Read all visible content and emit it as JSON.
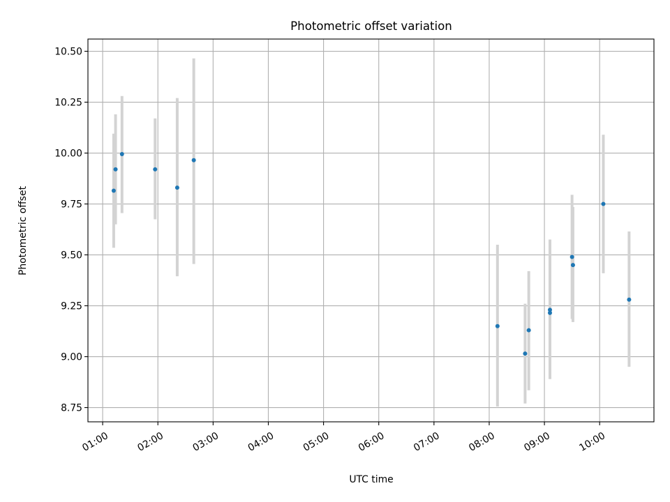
{
  "chart_data": {
    "type": "scatter",
    "title": "Photometric offset variation",
    "xlabel": "UTC time",
    "ylabel": "Photometric offset",
    "x_unit": "UTC clock time (HH:MM)",
    "xlim": [
      "00:44",
      "10:59"
    ],
    "ylim": [
      8.68,
      10.56
    ],
    "xticks": [
      "01:00",
      "02:00",
      "03:00",
      "04:00",
      "05:00",
      "06:00",
      "07:00",
      "08:00",
      "09:00",
      "10:00"
    ],
    "yticks": [
      "8.75",
      "9.00",
      "9.25",
      "9.50",
      "9.75",
      "10.00",
      "10.25",
      "10.50"
    ],
    "grid": true,
    "colors": {
      "points": "#1f77b4",
      "error_bars": "#d3d3d3",
      "grid": "#b0b0b0"
    },
    "points": [
      {
        "x": "01:12",
        "y": 9.815,
        "err_low": 9.535,
        "err_high": 10.095
      },
      {
        "x": "01:14",
        "y": 9.92,
        "err_low": 9.65,
        "err_high": 10.19
      },
      {
        "x": "01:21",
        "y": 9.995,
        "err_low": 9.705,
        "err_high": 10.28
      },
      {
        "x": "01:57",
        "y": 9.92,
        "err_low": 9.675,
        "err_high": 10.17
      },
      {
        "x": "02:21",
        "y": 9.83,
        "err_low": 9.395,
        "err_high": 10.27
      },
      {
        "x": "02:39",
        "y": 9.965,
        "err_low": 9.455,
        "err_high": 10.465
      },
      {
        "x": "08:09",
        "y": 9.15,
        "err_low": 8.755,
        "err_high": 9.55
      },
      {
        "x": "08:39",
        "y": 9.015,
        "err_low": 8.77,
        "err_high": 9.26
      },
      {
        "x": "08:43",
        "y": 9.13,
        "err_low": 8.835,
        "err_high": 9.42
      },
      {
        "x": "09:06",
        "y": 9.23,
        "err_low": 8.89,
        "err_high": 9.575
      },
      {
        "x": "09:06",
        "y": 9.215,
        "err_low": 8.89,
        "err_high": 9.575
      },
      {
        "x": "09:30",
        "y": 9.49,
        "err_low": 9.185,
        "err_high": 9.795
      },
      {
        "x": "09:31",
        "y": 9.45,
        "err_low": 9.17,
        "err_high": 9.735
      },
      {
        "x": "10:04",
        "y": 9.75,
        "err_low": 9.41,
        "err_high": 10.09
      },
      {
        "x": "10:32",
        "y": 9.28,
        "err_low": 8.95,
        "err_high": 9.615
      }
    ]
  }
}
